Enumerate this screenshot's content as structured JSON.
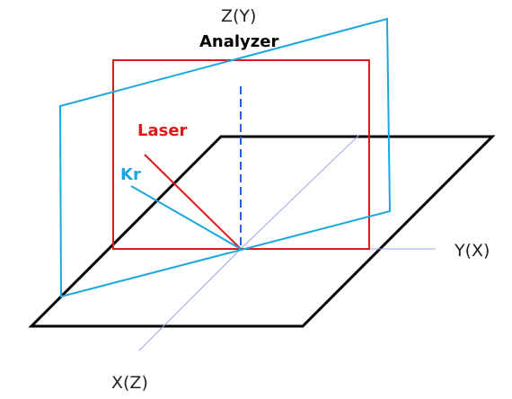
{
  "labels": {
    "z_axis": "Z(Y)",
    "analyzer": "Analyzer",
    "laser": "Laser",
    "kr": "Kr",
    "y_axis": "Y(X)",
    "x_axis": "X(Z)"
  },
  "colors": {
    "black_plane": "#000000",
    "analyzer_plane": "#1aa7e0",
    "laser_plane": "#e01818",
    "laser_beam": "#e01818",
    "kr_beam": "#1aa7e0",
    "z_axis": "#2b5fd9",
    "guide_axes": "#9aa9e6",
    "analyzer_text": "#000000",
    "laser_text": "#e01818",
    "kr_text": "#1aa7e0"
  }
}
